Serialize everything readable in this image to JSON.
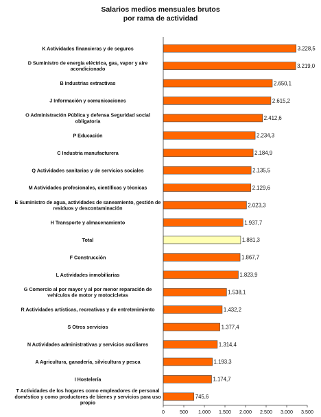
{
  "chart_data": {
    "type": "bar",
    "orientation": "horizontal",
    "title": "Salarios medios mensuales brutos",
    "subtitle": "por rama de actividad",
    "categories": [
      [
        "K  Actividades financieras y de seguros"
      ],
      [
        "D  Suministro de energía eléctrica, gas, vapor y aire",
        "acondicionado"
      ],
      [
        "B  Industrias extractivas"
      ],
      [
        "J  Información y comunicaciones"
      ],
      [
        "O  Administración Pública y defensa Seguridad social",
        "obligatoria"
      ],
      [
        "P  Educación"
      ],
      [
        "C  Industria manufacturera"
      ],
      [
        "Q  Actividades sanitarias y de servicios sociales"
      ],
      [
        "M  Actividades profesionales, científicas y técnicas"
      ],
      [
        "E  Suministro de agua, actividades de saneamiento, gestión de",
        "residuos y descontaminación"
      ],
      [
        "H  Transporte y almacenamiento"
      ],
      [
        "Total"
      ],
      [
        "F  Construcción"
      ],
      [
        "L  Actividades inmobiliarias"
      ],
      [
        "G  Comercio al por mayor y al por menor reparación de",
        "vehículos de motor y motocicletas"
      ],
      [
        "R  Actividades artísticas, recreativas y de entretenimiento"
      ],
      [
        "S  Otros servicios"
      ],
      [
        "N  Actividades administrativas y servicios auxiliares"
      ],
      [
        "A  Agricultura, ganadería, silvicultura y pesca"
      ],
      [
        "I  Hostelería"
      ],
      [
        "T  Actividades de los hogares como empleadores de personal",
        "doméstico y como productores de bienes y servicios para uso",
        "propio"
      ]
    ],
    "values": [
      3228.5,
      3219.0,
      2650.1,
      2615.2,
      2412.6,
      2234.3,
      2184.9,
      2135.5,
      2129.6,
      2023.3,
      1937.7,
      1881.3,
      1867.7,
      1823.9,
      1538.1,
      1432.2,
      1377.4,
      1314.4,
      1193.3,
      1174.7,
      745.6
    ],
    "value_labels": [
      "3.228,5",
      "3.219,0",
      "2.650,1",
      "2.615,2",
      "2.412,6",
      "2.234,3",
      "2.184,9",
      "2.135,5",
      "2.129,6",
      "2.023,3",
      "1.937,7",
      "1.881,3",
      "1.867,7",
      "1.823,9",
      "1.538,1",
      "1.432,2",
      "1.377,4",
      "1.314,4",
      "1.193,3",
      "1.174,7",
      "745,6"
    ],
    "highlight_index": 11,
    "xlim": [
      0,
      3500
    ],
    "xticks": [
      0,
      500,
      1000,
      1500,
      2000,
      2500,
      3000,
      3500
    ],
    "xtick_labels": [
      "0",
      "500",
      "1.000",
      "1.500",
      "2.000",
      "2.500",
      "3.000",
      "3.500"
    ],
    "grid": false,
    "legend": "none",
    "colors": {
      "bar": "#ff6600",
      "highlight": "#ffffb3",
      "outline": "#404040"
    }
  }
}
